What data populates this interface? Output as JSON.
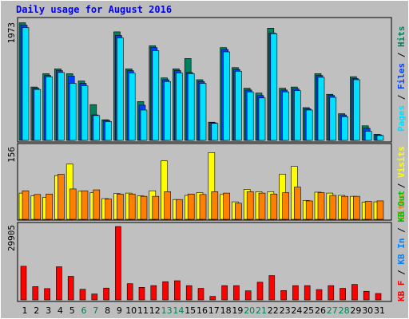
{
  "chart_data": [
    {
      "type": "bar",
      "title": "Daily usage for August 2016",
      "panel": "hits-files-pages",
      "y_max_label": "1973",
      "legend": [
        "Pages",
        "Files",
        "Hits"
      ],
      "categories": [
        "1",
        "2",
        "3",
        "4",
        "5",
        "6",
        "7",
        "8",
        "9",
        "10",
        "11",
        "12",
        "13",
        "14",
        "15",
        "16",
        "17",
        "18",
        "19",
        "20",
        "21",
        "22",
        "23",
        "24",
        "25",
        "26",
        "27",
        "28",
        "29",
        "30",
        "31"
      ],
      "weekend_days": [
        "6",
        "7",
        "13",
        "14",
        "20",
        "21",
        "27",
        "28"
      ],
      "series": [
        {
          "name": "Hits",
          "values": [
            1940,
            880,
            1100,
            1180,
            1100,
            980,
            590,
            340,
            1790,
            1180,
            640,
            1560,
            1030,
            1180,
            1350,
            1000,
            300,
            1530,
            1200,
            860,
            780,
            1850,
            860,
            880,
            540,
            1100,
            760,
            440,
            1050,
            240,
            100
          ]
        },
        {
          "name": "Files",
          "values": [
            1900,
            860,
            1070,
            1150,
            1060,
            940,
            420,
            330,
            1730,
            1150,
            580,
            1530,
            1000,
            1150,
            1120,
            970,
            290,
            1500,
            1170,
            830,
            740,
            1770,
            830,
            850,
            520,
            1070,
            740,
            420,
            1020,
            200,
            90
          ]
        },
        {
          "name": "Pages",
          "values": [
            1860,
            840,
            1050,
            1120,
            940,
            900,
            410,
            310,
            1690,
            1110,
            500,
            1480,
            970,
            1110,
            1100,
            940,
            280,
            1460,
            1140,
            800,
            700,
            1760,
            800,
            820,
            500,
            1040,
            710,
            390,
            1000,
            150,
            80
          ]
        }
      ]
    },
    {
      "type": "bar",
      "panel": "visits-sites",
      "y_max_label": "156",
      "legend": [
        "Visits",
        "Sites"
      ],
      "categories": [
        "1",
        "2",
        "3",
        "4",
        "5",
        "6",
        "7",
        "8",
        "9",
        "10",
        "11",
        "12",
        "13",
        "14",
        "15",
        "16",
        "17",
        "18",
        "19",
        "20",
        "21",
        "22",
        "23",
        "24",
        "25",
        "26",
        "27",
        "28",
        "29",
        "30",
        "31"
      ],
      "series": [
        {
          "name": "Visits",
          "values": [
            57,
            51,
            48,
            95,
            120,
            61,
            58,
            45,
            56,
            57,
            51,
            62,
            127,
            43,
            52,
            58,
            145,
            54,
            38,
            65,
            60,
            60,
            98,
            115,
            41,
            59,
            57,
            52,
            50,
            37,
            38
          ]
        },
        {
          "name": "Sites",
          "values": [
            62,
            54,
            55,
            98,
            66,
            62,
            64,
            44,
            55,
            55,
            50,
            50,
            60,
            43,
            55,
            54,
            60,
            57,
            35,
            60,
            57,
            55,
            58,
            70,
            40,
            58,
            52,
            50,
            50,
            39,
            40
          ]
        }
      ]
    },
    {
      "type": "bar",
      "panel": "kbytes",
      "y_max_label": "29905",
      "legend": [
        "KB F",
        "KB In",
        "KB Out"
      ],
      "categories": [
        "1",
        "2",
        "3",
        "4",
        "5",
        "6",
        "7",
        "8",
        "9",
        "10",
        "11",
        "12",
        "13",
        "14",
        "15",
        "16",
        "17",
        "18",
        "19",
        "20",
        "21",
        "22",
        "23",
        "24",
        "25",
        "26",
        "27",
        "28",
        "29",
        "30",
        "31"
      ],
      "series": [
        {
          "name": "KB F",
          "values": [
            13700,
            5400,
            4600,
            13500,
            9600,
            4300,
            2400,
            4800,
            29905,
            6600,
            5100,
            5800,
            7400,
            7800,
            5800,
            4700,
            1400,
            5800,
            5800,
            3700,
            7200,
            9900,
            3800,
            5800,
            5800,
            4200,
            5800,
            4700,
            6300,
            3500,
            2600
          ]
        }
      ]
    }
  ],
  "colors": {
    "hits": "#00805c",
    "files": "#0040ff",
    "pages": "#00e0ff",
    "visits": "#ffff00",
    "sites": "#ff8000",
    "kbytes": "#ff0000",
    "kb_in": "#0080ff",
    "kb_out": "#00c000",
    "title": "#0000ff",
    "weekend_label": "#00805c"
  }
}
